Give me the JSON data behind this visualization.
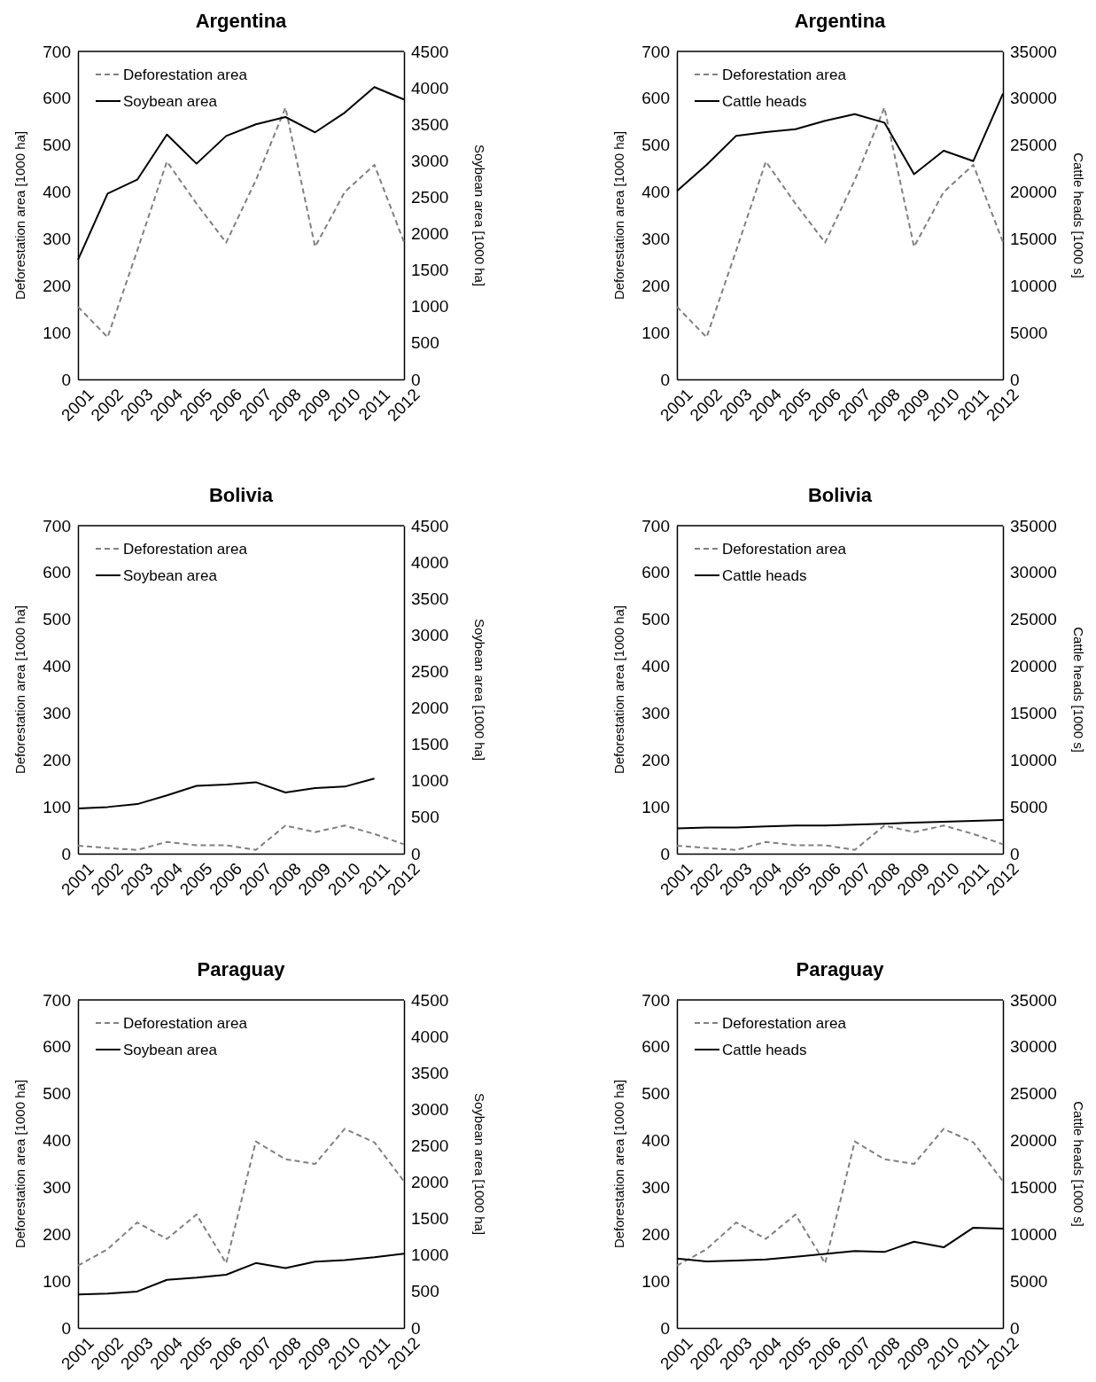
{
  "chart_data": [
    {
      "type": "line",
      "title": "Argentina",
      "ylabel": "Deforestation area [1000 ha]",
      "y2label": "Soybean area [1000 ha]",
      "categories": [
        "2001",
        "2002",
        "2003",
        "2004",
        "2005",
        "2006",
        "2007",
        "2008",
        "2009",
        "2010",
        "2011",
        "2012"
      ],
      "legend": "top left",
      "ylim": [
        0,
        700
      ],
      "yticks": [
        0,
        100,
        200,
        300,
        400,
        500,
        600,
        700
      ],
      "y2lim": [
        0,
        4500
      ],
      "y2ticks": [
        0,
        500,
        1000,
        1500,
        2000,
        2500,
        3000,
        3500,
        4000,
        4500
      ],
      "series": [
        {
          "name": "Deforestation area",
          "color": "#808080",
          "line_style": "dashed",
          "values": [
            155,
            90,
            275,
            465,
            375,
            292,
            425,
            580,
            283,
            400,
            458,
            293
          ]
        },
        {
          "name": "Soybean area",
          "color": "#000000",
          "line_style": "solid",
          "axis": "y2",
          "values": [
            1640,
            2550,
            2740,
            3360,
            2960,
            3340,
            3500,
            3600,
            3390,
            3660,
            4010,
            3840
          ]
        }
      ]
    },
    {
      "type": "line",
      "title": "Argentina",
      "ylabel": "Deforestation area [1000 ha]",
      "y2label": "Cattle heads [1000 s]",
      "categories": [
        "2001",
        "2002",
        "2003",
        "2004",
        "2005",
        "2006",
        "2007",
        "2008",
        "2009",
        "2010",
        "2011",
        "2012"
      ],
      "legend": "top left",
      "ylim": [
        0,
        700
      ],
      "yticks": [
        0,
        100,
        200,
        300,
        400,
        500,
        600,
        700
      ],
      "y2lim": [
        0,
        35000
      ],
      "y2ticks": [
        0,
        5000,
        10000,
        15000,
        20000,
        25000,
        30000,
        35000
      ],
      "series": [
        {
          "name": "Deforestation area",
          "color": "#808080",
          "line_style": "dashed",
          "values": [
            155,
            90,
            275,
            465,
            375,
            292,
            425,
            580,
            283,
            400,
            458,
            293
          ]
        },
        {
          "name": "Cattle heads",
          "color": "#000000",
          "line_style": "solid",
          "axis": "y2",
          "values": [
            20100,
            22900,
            26000,
            26400,
            26700,
            27600,
            28300,
            27400,
            21900,
            24400,
            23300,
            30500
          ]
        }
      ]
    },
    {
      "type": "line",
      "title": "Bolivia",
      "ylabel": "Deforestation area [1000 ha]",
      "y2label": "Soybean area [1000 ha]",
      "categories": [
        "2001",
        "2002",
        "2003",
        "2004",
        "2005",
        "2006",
        "2007",
        "2008",
        "2009",
        "2010",
        "2011",
        "2012"
      ],
      "legend": "top left",
      "ylim": [
        0,
        700
      ],
      "yticks": [
        0,
        100,
        200,
        300,
        400,
        500,
        600,
        700
      ],
      "y2lim": [
        0,
        4500
      ],
      "y2ticks": [
        0,
        500,
        1000,
        1500,
        2000,
        2500,
        3000,
        3500,
        4000,
        4500
      ],
      "series": [
        {
          "name": "Deforestation area",
          "color": "#808080",
          "line_style": "dashed",
          "values": [
            17,
            12,
            8,
            25,
            18,
            18,
            8,
            60,
            46,
            60,
            42,
            20
          ]
        },
        {
          "name": "Soybean area",
          "color": "#000000",
          "line_style": "solid",
          "axis": "y2",
          "values": [
            620,
            640,
            680,
            800,
            930,
            950,
            980,
            840,
            900,
            920,
            1030,
            null
          ]
        }
      ]
    },
    {
      "type": "line",
      "title": "Bolivia",
      "ylabel": "Deforestation area [1000 ha]",
      "y2label": "Cattle heads [1000 s]",
      "categories": [
        "2001",
        "2002",
        "2003",
        "2004",
        "2005",
        "2006",
        "2007",
        "2008",
        "2009",
        "2010",
        "2011",
        "2012"
      ],
      "legend": "top left",
      "ylim": [
        0,
        700
      ],
      "yticks": [
        0,
        100,
        200,
        300,
        400,
        500,
        600,
        700
      ],
      "y2lim": [
        0,
        35000
      ],
      "y2ticks": [
        0,
        5000,
        10000,
        15000,
        20000,
        25000,
        30000,
        35000
      ],
      "series": [
        {
          "name": "Deforestation area",
          "color": "#808080",
          "line_style": "dashed",
          "values": [
            17,
            12,
            8,
            25,
            18,
            18,
            8,
            60,
            46,
            60,
            42,
            20
          ]
        },
        {
          "name": "Cattle heads",
          "color": "#000000",
          "line_style": "solid",
          "axis": "y2",
          "values": [
            2700,
            2800,
            2800,
            2900,
            3000,
            3000,
            3100,
            3200,
            3300,
            3400,
            3500,
            3600
          ]
        }
      ]
    },
    {
      "type": "line",
      "title": "Paraguay",
      "ylabel": "Deforestation area [1000 ha]",
      "y2label": "Soybean area [1000 ha]",
      "categories": [
        "2001",
        "2002",
        "2003",
        "2004",
        "2005",
        "2006",
        "2007",
        "2008",
        "2009",
        "2010",
        "2011",
        "2012"
      ],
      "legend": "top left",
      "ylim": [
        0,
        700
      ],
      "yticks": [
        0,
        100,
        200,
        300,
        400,
        500,
        600,
        700
      ],
      "y2lim": [
        0,
        4500
      ],
      "y2ticks": [
        0,
        500,
        1000,
        1500,
        2000,
        2500,
        3000,
        3500,
        4000,
        4500
      ],
      "series": [
        {
          "name": "Deforestation area",
          "color": "#808080",
          "line_style": "dashed",
          "values": [
            133,
            168,
            225,
            190,
            242,
            138,
            398,
            360,
            350,
            425,
            396,
            313
          ]
        },
        {
          "name": "Soybean area",
          "color": "#000000",
          "line_style": "solid",
          "axis": "y2",
          "values": [
            460,
            470,
            500,
            660,
            690,
            730,
            890,
            820,
            910,
            930,
            970,
            1020
          ]
        }
      ]
    },
    {
      "type": "line",
      "title": "Paraguay",
      "ylabel": "Deforestation area [1000 ha]",
      "y2label": "Cattle heads [1000 s]",
      "categories": [
        "2001",
        "2002",
        "2003",
        "2004",
        "2005",
        "2006",
        "2007",
        "2008",
        "2009",
        "2010",
        "2011",
        "2012"
      ],
      "legend": "top left",
      "ylim": [
        0,
        700
      ],
      "yticks": [
        0,
        100,
        200,
        300,
        400,
        500,
        600,
        700
      ],
      "y2lim": [
        0,
        35000
      ],
      "y2ticks": [
        0,
        5000,
        10000,
        15000,
        20000,
        25000,
        30000,
        35000
      ],
      "series": [
        {
          "name": "Deforestation area",
          "color": "#808080",
          "line_style": "dashed",
          "values": [
            133,
            168,
            225,
            190,
            242,
            138,
            398,
            360,
            350,
            425,
            396,
            313
          ]
        },
        {
          "name": "Cattle heads",
          "color": "#000000",
          "line_style": "solid",
          "axis": "y2",
          "values": [
            7400,
            7100,
            7200,
            7300,
            7600,
            7900,
            8200,
            8100,
            9200,
            8600,
            10700,
            10600
          ]
        }
      ]
    }
  ]
}
